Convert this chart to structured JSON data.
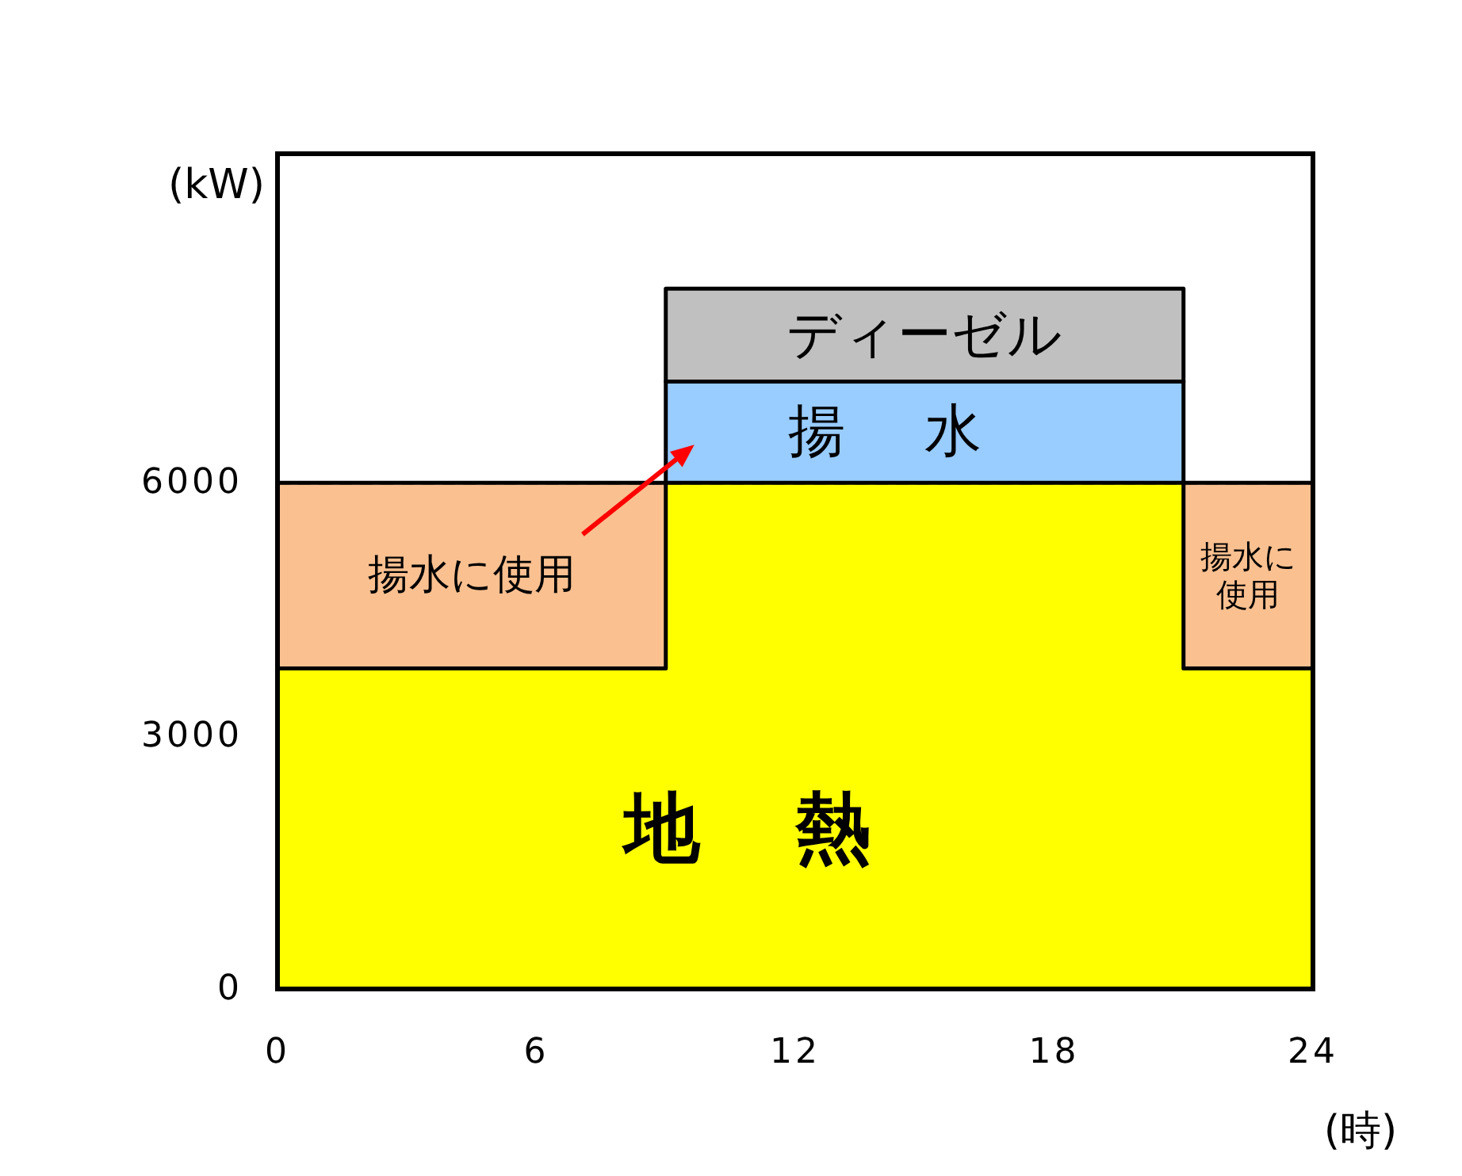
{
  "chart_data": {
    "type": "area",
    "stacked": true,
    "xlabel": "(時)",
    "ylabel": "(kW)",
    "x": [
      0,
      9,
      9,
      21,
      21,
      24
    ],
    "series": [
      {
        "name": "地熱",
        "color": "#ffff00",
        "values": [
          3800,
          3800,
          6000,
          6000,
          3800,
          3800
        ]
      },
      {
        "name": "揚水に使用",
        "color": "#fac090",
        "values": [
          2200,
          2200,
          null,
          null,
          2200,
          2200
        ]
      },
      {
        "name": "揚水",
        "color": "#99ccff",
        "values": [
          null,
          null,
          1200,
          1200,
          null,
          null
        ]
      },
      {
        "name": "ディーゼル",
        "color": "#c0c0c0",
        "values": [
          null,
          null,
          1100,
          1100,
          null,
          null
        ]
      }
    ],
    "xlim": [
      0,
      24
    ],
    "xticks": [
      0,
      6,
      12,
      18,
      24
    ],
    "ylim": [
      0,
      9900
    ],
    "yticks": [
      0,
      3000,
      6000
    ],
    "ref_lines": [
      {
        "axis": "y",
        "value": 6000,
        "line_style": "dashed",
        "color": "#000000"
      }
    ],
    "annotations": [
      "揚水に使用"
    ],
    "grid": false
  }
}
